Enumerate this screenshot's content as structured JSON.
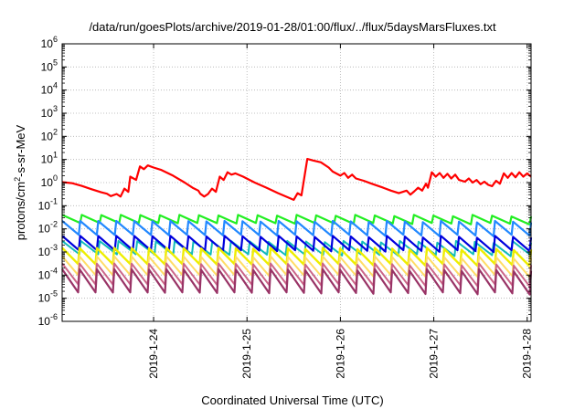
{
  "chart_data": {
    "type": "line",
    "title": "/data/run/goesPlots/archive/2019-01-28/01:00/flux/../flux/5daysMarsFluxes.txt",
    "xlabel": "Coordinated Universal Time (UTC)",
    "ylabel": {
      "main": "protons/cm",
      "sup": "2",
      "rest": "-s-sr-MeV"
    },
    "yscale": "log",
    "ylim_exp": [
      -6,
      6
    ],
    "xlim": [
      "2019-01-23 00:30",
      "2019-01-28 01:00"
    ],
    "grid": true,
    "legend": "none",
    "x_ticks": [
      {
        "label": "2019-1-24",
        "date": "2019-01-24"
      },
      {
        "label": "2019-1-25",
        "date": "2019-01-25"
      },
      {
        "label": "2019-1-26",
        "date": "2019-01-26"
      },
      {
        "label": "2019-1-27",
        "date": "2019-01-27"
      },
      {
        "label": "2019-1-28",
        "date": "2019-01-28"
      }
    ],
    "y_ticks": [
      {
        "base": "10",
        "exp": "-6"
      },
      {
        "base": "10",
        "exp": "-5"
      },
      {
        "base": "10",
        "exp": "-4"
      },
      {
        "base": "10",
        "exp": "-3"
      },
      {
        "base": "10",
        "exp": "-2"
      },
      {
        "base": "10",
        "exp": "-1"
      },
      {
        "base": "10",
        "exp": "0"
      },
      {
        "base": "10",
        "exp": "1"
      },
      {
        "base": "10",
        "exp": "2"
      },
      {
        "base": "10",
        "exp": "3"
      },
      {
        "base": "10",
        "exp": "4"
      },
      {
        "base": "10",
        "exp": "5"
      },
      {
        "base": "10",
        "exp": "6"
      }
    ],
    "series": [
      {
        "color": "#ff0000",
        "width": 2.2,
        "points": [
          [
            "2019-01-23 00:30",
            1.05
          ],
          [
            "2019-01-23 03:00",
            0.95
          ],
          [
            "2019-01-23 05:30",
            0.72
          ],
          [
            "2019-01-23 08:00",
            0.52
          ],
          [
            "2019-01-23 10:30",
            0.38
          ],
          [
            "2019-01-23 12:00",
            0.33
          ],
          [
            "2019-01-23 13:00",
            0.26
          ],
          [
            "2019-01-23 14:30",
            0.32
          ],
          [
            "2019-01-23 15:30",
            0.25
          ],
          [
            "2019-01-23 16:30",
            0.55
          ],
          [
            "2019-01-23 17:30",
            0.4
          ],
          [
            "2019-01-23 18:00",
            1.8
          ],
          [
            "2019-01-23 19:30",
            1.3
          ],
          [
            "2019-01-23 20:30",
            5.0
          ],
          [
            "2019-01-23 21:30",
            3.8
          ],
          [
            "2019-01-23 22:30",
            5.5
          ],
          [
            "2019-01-24 00:00",
            4.5
          ],
          [
            "2019-01-24 02:00",
            3.5
          ],
          [
            "2019-01-24 05:00",
            2.0
          ],
          [
            "2019-01-24 08:00",
            1.0
          ],
          [
            "2019-01-24 10:00",
            0.6
          ],
          [
            "2019-01-24 11:30",
            0.45
          ],
          [
            "2019-01-24 12:00",
            0.33
          ],
          [
            "2019-01-24 13:00",
            0.25
          ],
          [
            "2019-01-24 14:00",
            0.32
          ],
          [
            "2019-01-24 15:00",
            0.55
          ],
          [
            "2019-01-24 16:00",
            0.4
          ],
          [
            "2019-01-24 17:00",
            1.8
          ],
          [
            "2019-01-24 18:00",
            1.3
          ],
          [
            "2019-01-24 19:00",
            2.8
          ],
          [
            "2019-01-24 20:00",
            2.2
          ],
          [
            "2019-01-24 21:00",
            2.5
          ],
          [
            "2019-01-24 23:00",
            1.8
          ],
          [
            "2019-01-25 02:00",
            1.0
          ],
          [
            "2019-01-25 05:00",
            0.6
          ],
          [
            "2019-01-25 08:00",
            0.35
          ],
          [
            "2019-01-25 10:00",
            0.25
          ],
          [
            "2019-01-25 12:00",
            0.18
          ],
          [
            "2019-01-25 13:00",
            0.35
          ],
          [
            "2019-01-25 14:00",
            0.28
          ],
          [
            "2019-01-25 15:30",
            10.5
          ],
          [
            "2019-01-25 17:00",
            9.0
          ],
          [
            "2019-01-25 19:00",
            7.5
          ],
          [
            "2019-01-25 21:00",
            4.5
          ],
          [
            "2019-01-25 22:00",
            3.0
          ],
          [
            "2019-01-26 00:00",
            2.0
          ],
          [
            "2019-01-26 01:00",
            2.6
          ],
          [
            "2019-01-26 02:00",
            1.6
          ],
          [
            "2019-01-26 03:00",
            2.2
          ],
          [
            "2019-01-26 04:00",
            1.5
          ],
          [
            "2019-01-26 06:00",
            1.2
          ],
          [
            "2019-01-26 08:00",
            0.9
          ],
          [
            "2019-01-26 11:00",
            0.6
          ],
          [
            "2019-01-26 13:00",
            0.45
          ],
          [
            "2019-01-26 15:00",
            0.35
          ],
          [
            "2019-01-26 17:00",
            0.45
          ],
          [
            "2019-01-26 18:00",
            0.3
          ],
          [
            "2019-01-26 19:00",
            0.42
          ],
          [
            "2019-01-26 20:00",
            0.6
          ],
          [
            "2019-01-26 21:00",
            0.45
          ],
          [
            "2019-01-26 22:00",
            0.9
          ],
          [
            "2019-01-26 22:30",
            0.6
          ],
          [
            "2019-01-26 23:30",
            2.8
          ],
          [
            "2019-01-27 00:30",
            1.8
          ],
          [
            "2019-01-27 01:30",
            2.6
          ],
          [
            "2019-01-27 02:30",
            1.6
          ],
          [
            "2019-01-27 03:30",
            2.4
          ],
          [
            "2019-01-27 04:30",
            1.5
          ],
          [
            "2019-01-27 05:30",
            2.2
          ],
          [
            "2019-01-27 06:30",
            1.3
          ],
          [
            "2019-01-27 08:00",
            1.1
          ],
          [
            "2019-01-27 09:00",
            1.5
          ],
          [
            "2019-01-27 10:00",
            1.0
          ],
          [
            "2019-01-27 11:00",
            1.3
          ],
          [
            "2019-01-27 12:00",
            0.85
          ],
          [
            "2019-01-27 13:00",
            1.1
          ],
          [
            "2019-01-27 14:00",
            0.8
          ],
          [
            "2019-01-27 15:00",
            0.7
          ],
          [
            "2019-01-27 16:00",
            1.2
          ],
          [
            "2019-01-27 17:00",
            0.9
          ],
          [
            "2019-01-27 18:00",
            2.5
          ],
          [
            "2019-01-27 19:00",
            1.6
          ],
          [
            "2019-01-27 20:00",
            2.6
          ],
          [
            "2019-01-27 21:00",
            1.7
          ],
          [
            "2019-01-27 22:00",
            2.8
          ],
          [
            "2019-01-27 23:00",
            1.8
          ],
          [
            "2019-01-28 00:00",
            2.5
          ],
          [
            "2019-01-28 01:00",
            1.8
          ]
        ]
      },
      {
        "color": "#22ee22",
        "width": 2.2,
        "sawtooth": {
          "peak": 0.04,
          "trough": 0.018,
          "cycles": 24,
          "drift": 0.85
        }
      },
      {
        "color": "#2288ff",
        "width": 2.2,
        "sawtooth": {
          "peak": 0.022,
          "trough": 0.0055,
          "cycles": 26,
          "drift": 0.85
        }
      },
      {
        "color": "#11bbbb",
        "width": 2.0,
        "sawtooth": {
          "peak": 0.003,
          "trough": 0.0008,
          "cycles": 25,
          "drift": 0.8
        }
      },
      {
        "color": "#0000dd",
        "width": 2.2,
        "sawtooth": {
          "peak": 0.005,
          "trough": 0.0012,
          "cycles": 26,
          "drift": 0.8
        }
      },
      {
        "color": "#eeee00",
        "width": 2.4,
        "sawtooth": {
          "peak": 0.0015,
          "trough": 0.0003,
          "cycles": 27,
          "drift": 0.8
        }
      },
      {
        "color": "#ffdd66",
        "width": 2.0,
        "sawtooth": {
          "peak": 0.00065,
          "trough": 0.0001,
          "cycles": 27,
          "drift": 0.8
        }
      },
      {
        "color": "#cc6688",
        "width": 2.0,
        "sawtooth": {
          "peak": 0.00032,
          "trough": 4e-05,
          "cycles": 27,
          "drift": 0.8
        }
      },
      {
        "color": "#993366",
        "width": 2.2,
        "sawtooth": {
          "peak": 0.00018,
          "trough": 1.8e-05,
          "cycles": 27,
          "drift": 0.8
        }
      }
    ]
  }
}
